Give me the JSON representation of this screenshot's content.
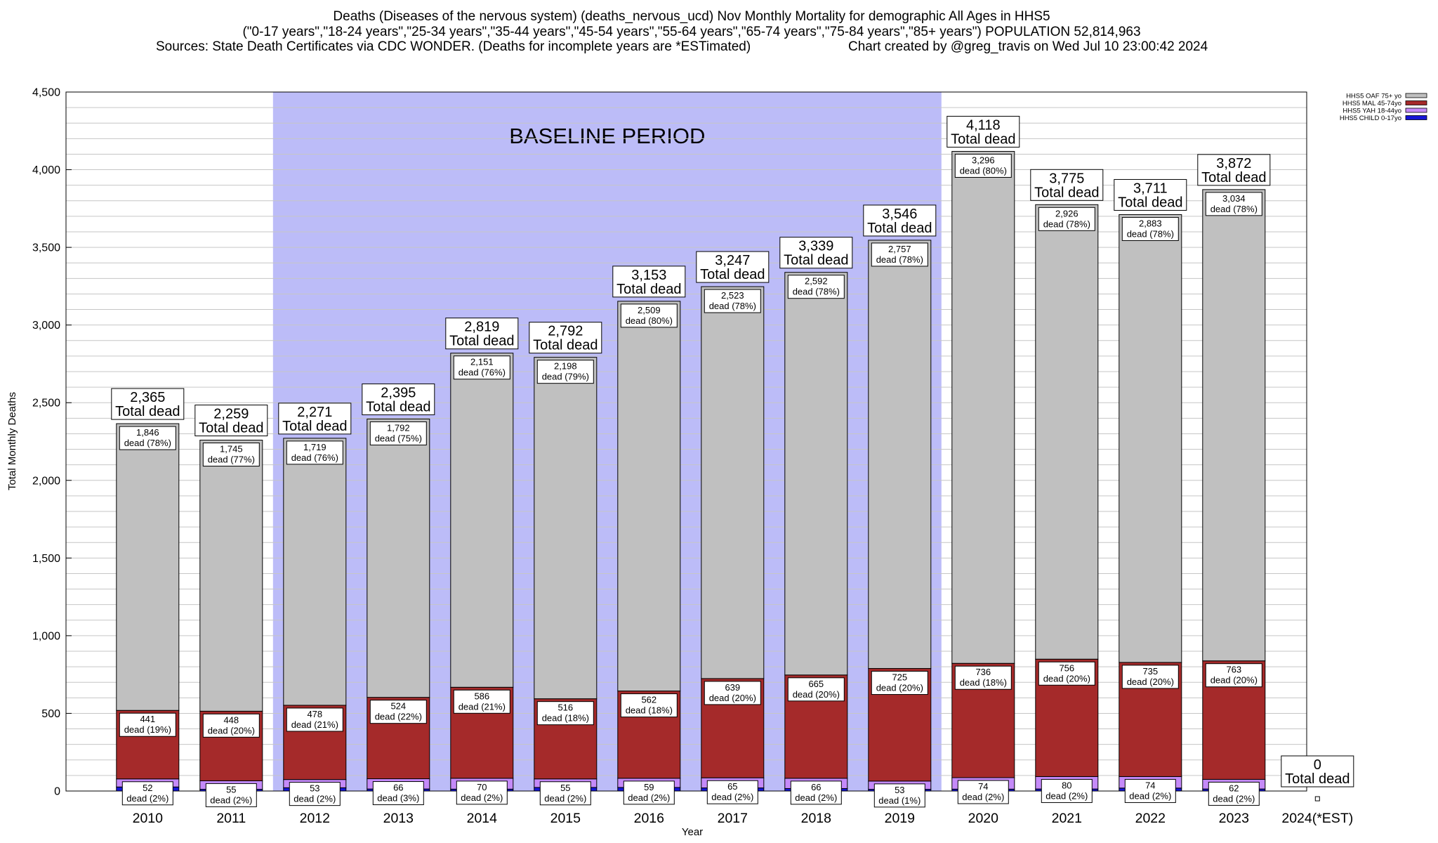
{
  "chart_data": {
    "type": "bar",
    "stacked": true,
    "title": "Deaths (Diseases of the nervous system) (deaths_nervous_ucd) Nov Monthly Mortality for demographic All Ages in HHS5",
    "subtitle": "(\"0-17 years\",\"18-24 years\",\"25-34 years\",\"35-44 years\",\"45-54 years\",\"55-64 years\",\"65-74 years\",\"75-84 years\",\"85+ years\") POPULATION 52,814,963",
    "sources": "Sources: State Death Certificates via CDC WONDER. (Deaths for incomplete years are *ESTimated)",
    "credit": "Chart created by @greg_travis on Wed Jul 10 23:00:42 2024",
    "xlabel": "Year",
    "ylabel": "Total Monthly Deaths",
    "ylim": [
      0,
      4500
    ],
    "yticks": [
      0,
      500,
      1000,
      1500,
      2000,
      2500,
      3000,
      3500,
      4000,
      4500
    ],
    "ytick_labels": [
      "0",
      "500",
      "1,000",
      "1,500",
      "2,000",
      "2,500",
      "3,000",
      "3,500",
      "4,000",
      "4,500"
    ],
    "minor_step": 100,
    "grid": true,
    "legend_position": "top-right",
    "categories": [
      "2010",
      "2011",
      "2012",
      "2013",
      "2014",
      "2015",
      "2016",
      "2017",
      "2018",
      "2019",
      "2020",
      "2021",
      "2022",
      "2023",
      "2024(*EST)"
    ],
    "totals": [
      2365,
      2259,
      2271,
      2395,
      2819,
      2792,
      3153,
      3247,
      3339,
      3546,
      4118,
      3775,
      3711,
      3872,
      0
    ],
    "total_labels": [
      "2,365",
      "2,259",
      "2,271",
      "2,395",
      "2,819",
      "2,792",
      "3,153",
      "3,247",
      "3,339",
      "3,546",
      "4,118",
      "3,775",
      "3,711",
      "3,872",
      "0"
    ],
    "total_label_text": "Total dead",
    "series": [
      {
        "name": "HHS5 OAF 75+ yo",
        "color": "#c0c0c0",
        "values": [
          1846,
          1745,
          1719,
          1792,
          2151,
          2198,
          2509,
          2523,
          2592,
          2757,
          3296,
          2926,
          2883,
          3034,
          0
        ],
        "labels": [
          "1,846",
          "1,745",
          "1,719",
          "1,792",
          "2,151",
          "2,198",
          "2,509",
          "2,523",
          "2,592",
          "2,757",
          "3,296",
          "2,926",
          "2,883",
          "3,034",
          null
        ],
        "pct_labels": [
          "dead (78%)",
          "dead (77%)",
          "dead (76%)",
          "dead (75%)",
          "dead (76%)",
          "dead (79%)",
          "dead (80%)",
          "dead (78%)",
          "dead (78%)",
          "dead (78%)",
          "dead (80%)",
          "dead (78%)",
          "dead (78%)",
          "dead (78%)",
          null
        ]
      },
      {
        "name": "HHS5 MAL 45-74yo",
        "color": "#a52a2a",
        "values": [
          441,
          448,
          478,
          524,
          586,
          516,
          562,
          639,
          665,
          725,
          736,
          756,
          735,
          763,
          0
        ],
        "labels": [
          "441",
          "448",
          "478",
          "524",
          "586",
          "516",
          "562",
          "639",
          "665",
          "725",
          "736",
          "756",
          "735",
          "763",
          null
        ],
        "pct_labels": [
          "dead (19%)",
          "dead (20%)",
          "dead (21%)",
          "dead (22%)",
          "dead (21%)",
          "dead (18%)",
          "dead (18%)",
          "dead (20%)",
          "dead (20%)",
          "dead (20%)",
          "dead (18%)",
          "dead (20%)",
          "dead (20%)",
          "dead (20%)",
          null
        ]
      },
      {
        "name": "HHS5 YAH 18-44yo",
        "color": "#c58af9",
        "values": [
          52,
          55,
          53,
          66,
          70,
          55,
          59,
          65,
          66,
          53,
          74,
          80,
          74,
          62,
          0
        ],
        "labels": [
          "52",
          "55",
          "53",
          "66",
          "70",
          "55",
          "59",
          "65",
          "66",
          "53",
          "74",
          "80",
          "74",
          "62",
          null
        ],
        "pct_labels": [
          "dead (2%)",
          "dead (2%)",
          "dead (2%)",
          "dead (3%)",
          "dead (2%)",
          "dead (2%)",
          "dead (2%)",
          "dead (2%)",
          "dead (2%)",
          "dead (1%)",
          "dead (2%)",
          "dead (2%)",
          "dead (2%)",
          "dead (2%)",
          null
        ]
      },
      {
        "name": "HHS5 CHILD 0-17yo",
        "color": "#1515d6",
        "values": [
          26,
          11,
          21,
          13,
          12,
          23,
          23,
          20,
          16,
          11,
          12,
          13,
          19,
          13,
          0
        ]
      }
    ],
    "baseline": {
      "label": "BASELINE PERIOD",
      "from": "2012",
      "to": "2019",
      "color": "#bcbcf8"
    }
  }
}
